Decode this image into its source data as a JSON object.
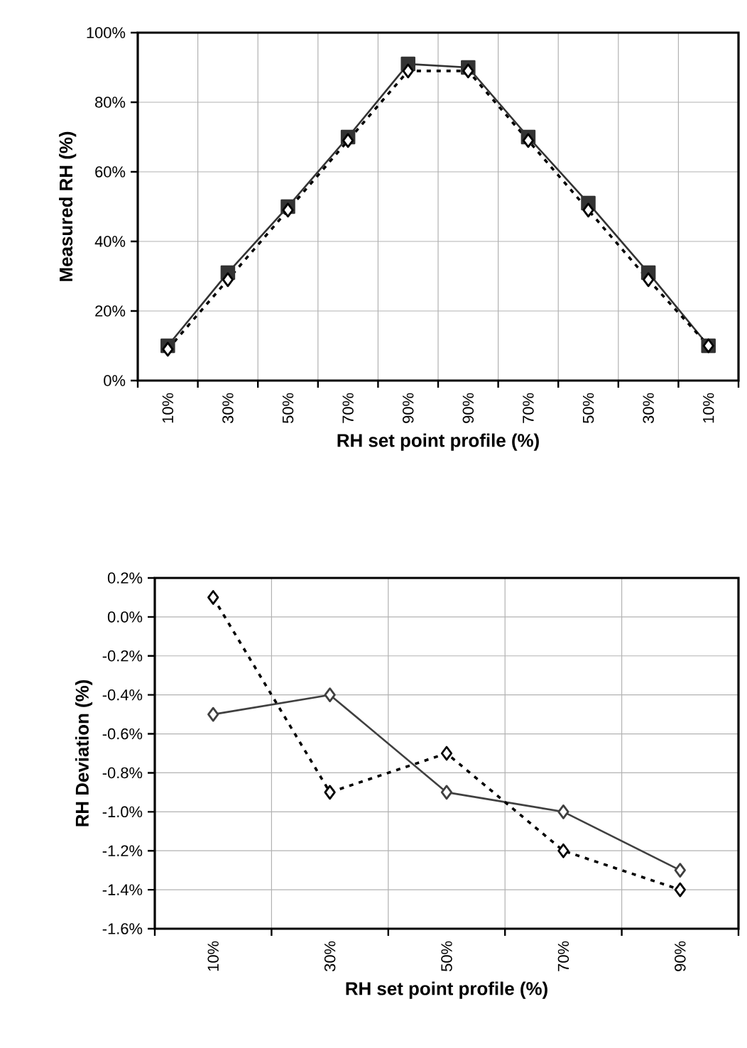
{
  "chart_data": [
    {
      "type": "line",
      "xlabel": "RH set point profile (%)",
      "ylabel": "Measured RH (%)",
      "categories": [
        "10%",
        "30%",
        "50%",
        "70%",
        "90%",
        "90%",
        "70%",
        "50%",
        "30%",
        "10%"
      ],
      "series": [
        {
          "color": "#333333",
          "marker": "square",
          "line_style": "solid",
          "values": [
            10,
            31,
            50,
            70,
            91,
            90,
            70,
            51,
            31,
            10
          ]
        },
        {
          "color": "#000000",
          "marker": "diamond",
          "line_style": "dashed",
          "values": [
            9,
            29,
            49,
            69,
            89,
            89,
            69,
            49,
            29,
            10
          ]
        }
      ],
      "ylim": [
        0,
        100
      ],
      "yticks": [
        {
          "value": 0,
          "label": "0%"
        },
        {
          "value": 20,
          "label": "20%"
        },
        {
          "value": 40,
          "label": "40%"
        },
        {
          "value": 60,
          "label": "60%"
        },
        {
          "value": 80,
          "label": "80%"
        },
        {
          "value": 100,
          "label": "100%"
        }
      ],
      "grid": true
    },
    {
      "type": "line",
      "xlabel": "RH set point profile (%)",
      "ylabel": "RH Deviation (%)",
      "categories": [
        "10%",
        "30%",
        "50%",
        "70%",
        "90%"
      ],
      "series": [
        {
          "color": "#404040",
          "marker": "diamond",
          "line_style": "solid",
          "values": [
            -0.5,
            -0.4,
            -0.9,
            -1.0,
            -1.3
          ]
        },
        {
          "color": "#000000",
          "marker": "diamond",
          "line_style": "dashed",
          "values": [
            0.1,
            -0.9,
            -0.7,
            -1.2,
            -1.4
          ]
        }
      ],
      "ylim": [
        -1.6,
        0.2
      ],
      "yticks": [
        {
          "value": 0.2,
          "label": "0.2%"
        },
        {
          "value": 0.0,
          "label": "0.0%"
        },
        {
          "value": -0.2,
          "label": "-0.2%"
        },
        {
          "value": -0.4,
          "label": "-0.4%"
        },
        {
          "value": -0.6,
          "label": "-0.6%"
        },
        {
          "value": -0.8,
          "label": "-0.8%"
        },
        {
          "value": -1.0,
          "label": "-1.0%"
        },
        {
          "value": -1.2,
          "label": "-1.2%"
        },
        {
          "value": -1.4,
          "label": "-1.4%"
        },
        {
          "value": -1.6,
          "label": "-1.6%"
        }
      ],
      "grid": true
    }
  ]
}
